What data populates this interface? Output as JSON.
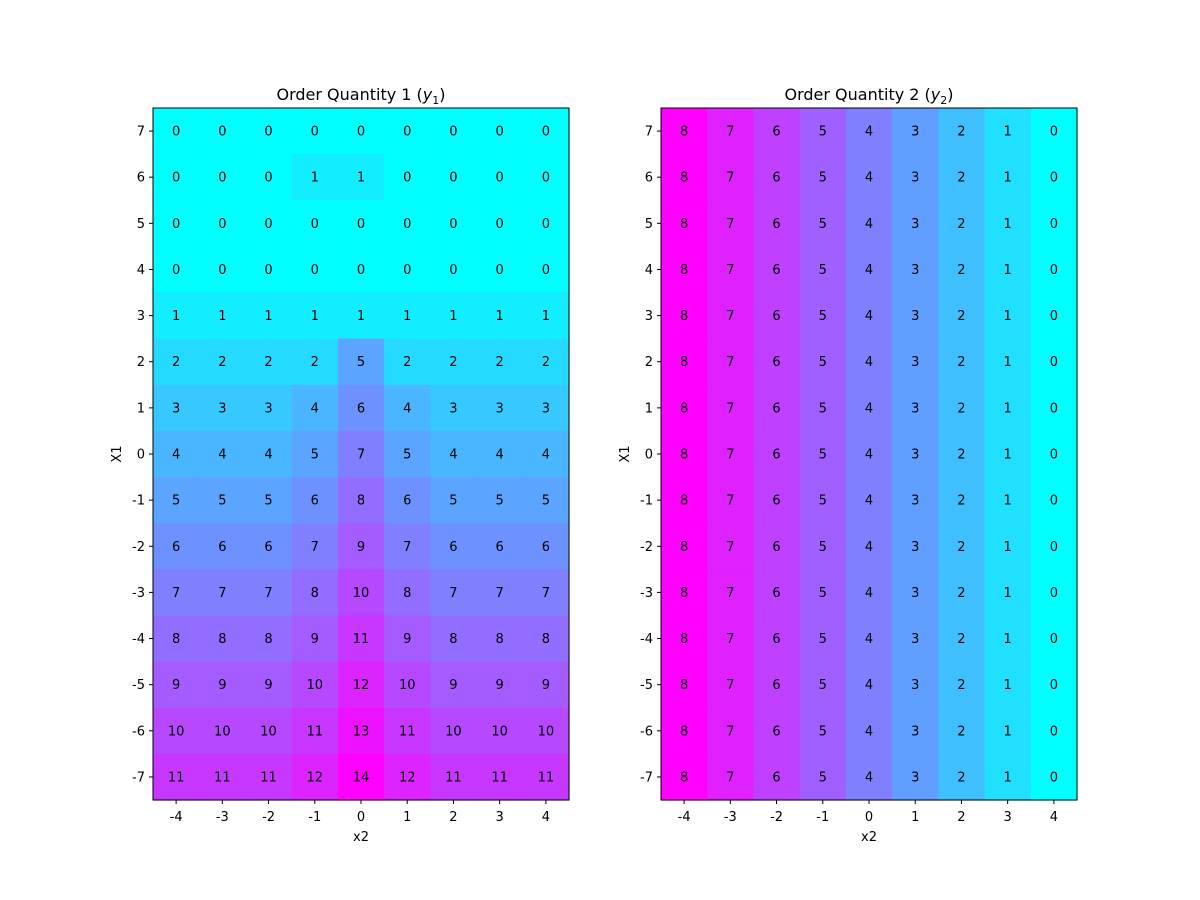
{
  "chart_data": [
    {
      "type": "heatmap",
      "title": "Order Quantity 1 (",
      "title_var": "y",
      "title_sub": "1",
      "title_close": ")",
      "xlabel": "x2",
      "ylabel": "X1",
      "colormap": "cool",
      "value_range": [
        0,
        14
      ],
      "x": [
        -4,
        -3,
        -2,
        -1,
        0,
        1,
        2,
        3,
        4
      ],
      "y": [
        7,
        6,
        5,
        4,
        3,
        2,
        1,
        0,
        -1,
        -2,
        -3,
        -4,
        -5,
        -6,
        -7
      ],
      "values": [
        [
          0,
          0,
          0,
          0,
          0,
          0,
          0,
          0,
          0
        ],
        [
          0,
          0,
          0,
          1,
          1,
          0,
          0,
          0,
          0
        ],
        [
          0,
          0,
          0,
          0,
          0,
          0,
          0,
          0,
          0
        ],
        [
          0,
          0,
          0,
          0,
          0,
          0,
          0,
          0,
          0
        ],
        [
          1,
          1,
          1,
          1,
          1,
          1,
          1,
          1,
          1
        ],
        [
          2,
          2,
          2,
          2,
          5,
          2,
          2,
          2,
          2
        ],
        [
          3,
          3,
          3,
          4,
          6,
          4,
          3,
          3,
          3
        ],
        [
          4,
          4,
          4,
          5,
          7,
          5,
          4,
          4,
          4
        ],
        [
          5,
          5,
          5,
          6,
          8,
          6,
          5,
          5,
          5
        ],
        [
          6,
          6,
          6,
          7,
          9,
          7,
          6,
          6,
          6
        ],
        [
          7,
          7,
          7,
          8,
          10,
          8,
          7,
          7,
          7
        ],
        [
          8,
          8,
          8,
          9,
          11,
          9,
          8,
          8,
          8
        ],
        [
          9,
          9,
          9,
          10,
          12,
          10,
          9,
          9,
          9
        ],
        [
          10,
          10,
          10,
          11,
          13,
          11,
          10,
          10,
          10
        ],
        [
          11,
          11,
          11,
          12,
          14,
          12,
          11,
          11,
          11
        ]
      ]
    },
    {
      "type": "heatmap",
      "title": "Order Quantity 2 (",
      "title_var": "y",
      "title_sub": "2",
      "title_close": ")",
      "xlabel": "x2",
      "ylabel": "X1",
      "colormap": "cool",
      "value_range": [
        0,
        8
      ],
      "x": [
        -4,
        -3,
        -2,
        -1,
        0,
        1,
        2,
        3,
        4
      ],
      "y": [
        7,
        6,
        5,
        4,
        3,
        2,
        1,
        0,
        -1,
        -2,
        -3,
        -4,
        -5,
        -6,
        -7
      ],
      "values": [
        [
          8,
          7,
          6,
          5,
          4,
          3,
          2,
          1,
          0
        ],
        [
          8,
          7,
          6,
          5,
          4,
          3,
          2,
          1,
          0
        ],
        [
          8,
          7,
          6,
          5,
          4,
          3,
          2,
          1,
          0
        ],
        [
          8,
          7,
          6,
          5,
          4,
          3,
          2,
          1,
          0
        ],
        [
          8,
          7,
          6,
          5,
          4,
          3,
          2,
          1,
          0
        ],
        [
          8,
          7,
          6,
          5,
          4,
          3,
          2,
          1,
          0
        ],
        [
          8,
          7,
          6,
          5,
          4,
          3,
          2,
          1,
          0
        ],
        [
          8,
          7,
          6,
          5,
          4,
          3,
          2,
          1,
          0
        ],
        [
          8,
          7,
          6,
          5,
          4,
          3,
          2,
          1,
          0
        ],
        [
          8,
          7,
          6,
          5,
          4,
          3,
          2,
          1,
          0
        ],
        [
          8,
          7,
          6,
          5,
          4,
          3,
          2,
          1,
          0
        ],
        [
          8,
          7,
          6,
          5,
          4,
          3,
          2,
          1,
          0
        ],
        [
          8,
          7,
          6,
          5,
          4,
          3,
          2,
          1,
          0
        ],
        [
          8,
          7,
          6,
          5,
          4,
          3,
          2,
          1,
          0
        ],
        [
          8,
          7,
          6,
          5,
          4,
          3,
          2,
          1,
          0
        ]
      ]
    }
  ]
}
